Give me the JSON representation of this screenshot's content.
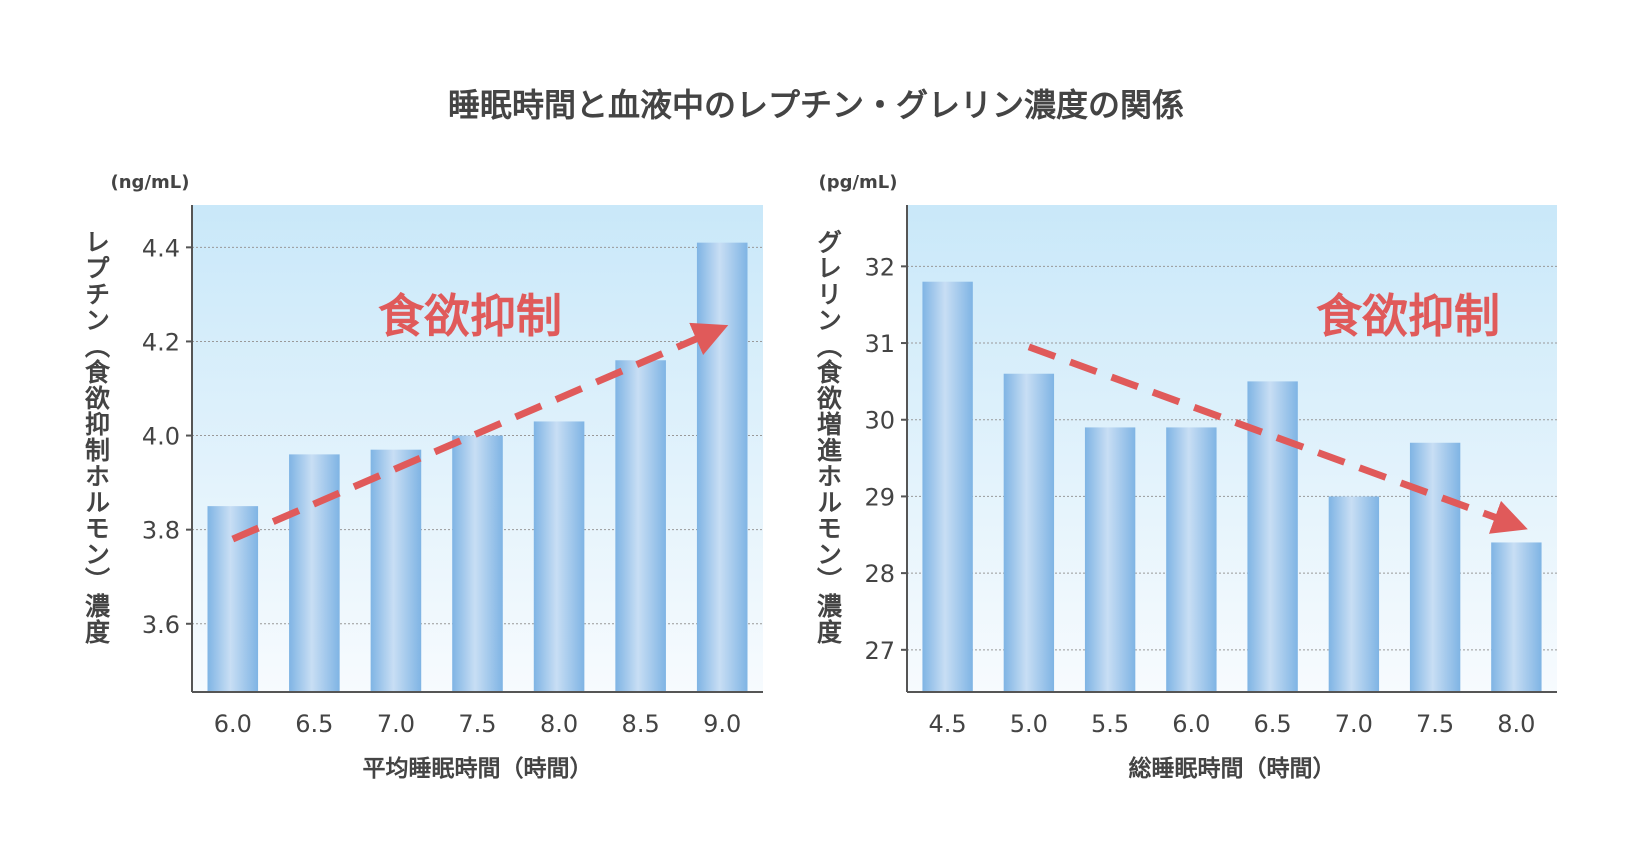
{
  "title": "睡眠時間と血液中のレプチン・グレリン濃度の関係",
  "chart_data": [
    {
      "type": "bar",
      "unit": "(ng/mL)",
      "ylabel": "レプチン（食欲抑制ホルモン）濃度",
      "xlabel": "平均睡眠時間（時間）",
      "categories": [
        "6.0",
        "6.5",
        "7.0",
        "7.5",
        "8.0",
        "8.5",
        "9.0"
      ],
      "values": [
        3.85,
        3.96,
        3.97,
        4.0,
        4.03,
        4.16,
        4.41
      ],
      "yticks": [
        "3.6",
        "3.8",
        "4.0",
        "4.2",
        "4.4"
      ],
      "ylim": [
        3.455,
        4.49
      ],
      "grid": true,
      "annotation": {
        "text": "食欲抑制",
        "arrow_from": [
          6.0,
          3.78
        ],
        "arrow_to": [
          9.0,
          4.22
        ],
        "arrow_dir": "up"
      }
    },
    {
      "type": "bar",
      "unit": "(pg/mL)",
      "ylabel": "グレリン（食欲増進ホルモン）濃度",
      "xlabel": "総睡眠時間（時間）",
      "categories": [
        "4.5",
        "5.0",
        "5.5",
        "6.0",
        "6.5",
        "7.0",
        "7.5",
        "8.0"
      ],
      "values": [
        31.8,
        30.6,
        29.9,
        29.9,
        30.5,
        29.0,
        29.7,
        28.4
      ],
      "yticks": [
        "27",
        "28",
        "29",
        "30",
        "31",
        "32"
      ],
      "ylim": [
        26.45,
        32.8
      ],
      "grid": true,
      "annotation": {
        "text": "食欲抑制",
        "arrow_from": [
          5.0,
          30.95
        ],
        "arrow_to": [
          8.0,
          28.65
        ],
        "arrow_dir": "down"
      }
    }
  ],
  "colors": {
    "bar": "#8fc0ea",
    "bar_light": "#c6ddf4",
    "arrow": "#e05a5a",
    "bg_top": "#cdeafa",
    "axis": "#555555",
    "text": "#444444"
  }
}
